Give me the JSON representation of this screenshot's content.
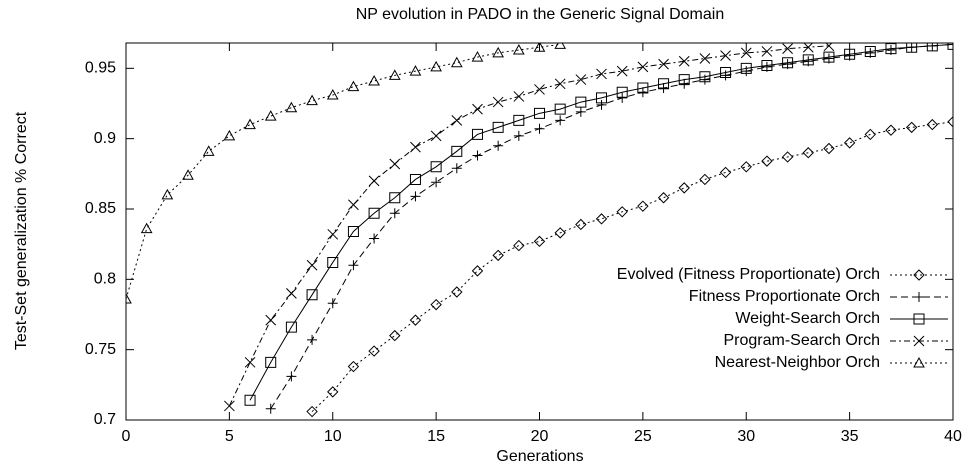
{
  "chart_data": {
    "type": "line",
    "title": "NP evolution in PADO in the Generic Signal Domain",
    "xlabel": "Generations",
    "ylabel": "Test-Set generalization % Correct",
    "x": [
      0,
      1,
      2,
      3,
      4,
      5,
      6,
      7,
      8,
      9,
      10,
      11,
      12,
      13,
      14,
      15,
      16,
      17,
      18,
      19,
      20,
      21,
      22,
      23,
      24,
      25,
      26,
      27,
      28,
      29,
      30,
      31,
      32,
      33,
      34,
      35,
      36,
      37,
      38,
      39,
      40
    ],
    "xlim": [
      0,
      40
    ],
    "xticks": [
      0,
      5,
      10,
      15,
      20,
      25,
      30,
      35,
      40
    ],
    "ylim": [
      0.7,
      0.968
    ],
    "yticks": [
      0.7,
      0.75,
      0.8,
      0.85,
      0.9,
      0.95
    ],
    "legend": "lower right",
    "series": [
      {
        "name": "Evolved (Fitness Proportionate) Orch",
        "color": "#000000",
        "marker": "diamond",
        "dash": "dotted",
        "values": [
          null,
          null,
          null,
          null,
          null,
          null,
          null,
          null,
          null,
          0.706,
          0.72,
          0.738,
          0.749,
          0.76,
          0.771,
          0.782,
          0.791,
          0.806,
          0.817,
          0.824,
          0.827,
          0.833,
          0.839,
          0.843,
          0.848,
          0.852,
          0.858,
          0.865,
          0.871,
          0.876,
          0.88,
          0.884,
          0.887,
          0.89,
          0.893,
          0.897,
          0.903,
          0.906,
          0.908,
          0.91,
          0.912
        ]
      },
      {
        "name": "Fitness Proportionate Orch",
        "color": "#000000",
        "marker": "plus",
        "dash": "dashed",
        "values": [
          null,
          null,
          null,
          null,
          null,
          null,
          null,
          0.708,
          0.731,
          0.757,
          0.783,
          0.81,
          0.829,
          0.847,
          0.859,
          0.869,
          0.879,
          0.888,
          0.895,
          0.902,
          0.907,
          0.913,
          0.919,
          0.924,
          0.929,
          0.933,
          0.936,
          0.939,
          0.942,
          0.945,
          0.948,
          0.951,
          0.953,
          0.955,
          0.957,
          0.959,
          0.961,
          0.963,
          0.965,
          0.966,
          0.967
        ]
      },
      {
        "name": "Weight-Search Orch",
        "color": "#000000",
        "marker": "square",
        "dash": "solid",
        "values": [
          null,
          null,
          null,
          null,
          null,
          null,
          0.714,
          0.741,
          0.766,
          0.789,
          0.812,
          0.834,
          0.847,
          0.858,
          0.871,
          0.88,
          0.891,
          0.903,
          0.908,
          0.913,
          0.918,
          0.921,
          0.926,
          0.929,
          0.933,
          0.936,
          0.939,
          0.942,
          0.944,
          0.947,
          0.95,
          0.952,
          0.954,
          0.956,
          0.958,
          0.96,
          0.962,
          0.964,
          0.965,
          0.966,
          0.967
        ]
      },
      {
        "name": "Program-Search Orch",
        "color": "#000000",
        "marker": "cross",
        "dash": "dashdot",
        "values": [
          null,
          null,
          null,
          null,
          null,
          0.71,
          0.741,
          0.771,
          0.79,
          0.81,
          0.832,
          0.853,
          0.87,
          0.882,
          0.894,
          0.902,
          0.913,
          0.921,
          0.926,
          0.93,
          0.935,
          0.939,
          0.942,
          0.946,
          0.948,
          0.951,
          0.953,
          0.955,
          0.957,
          0.959,
          0.961,
          0.962,
          0.964,
          0.965,
          0.966,
          null,
          null,
          null,
          null,
          null,
          null
        ]
      },
      {
        "name": "Nearest-Neighbor Orch",
        "color": "#000000",
        "marker": "triangle",
        "dash": "dotted",
        "values": [
          0.786,
          0.836,
          0.86,
          0.874,
          0.891,
          0.902,
          0.91,
          0.916,
          0.922,
          0.927,
          0.931,
          0.937,
          0.941,
          0.945,
          0.948,
          0.951,
          0.954,
          0.958,
          0.961,
          0.963,
          0.965,
          0.967,
          null,
          null,
          null,
          null,
          null,
          null,
          null,
          null,
          null,
          null,
          null,
          null,
          null,
          null,
          null,
          null,
          null,
          null,
          null
        ]
      }
    ]
  }
}
